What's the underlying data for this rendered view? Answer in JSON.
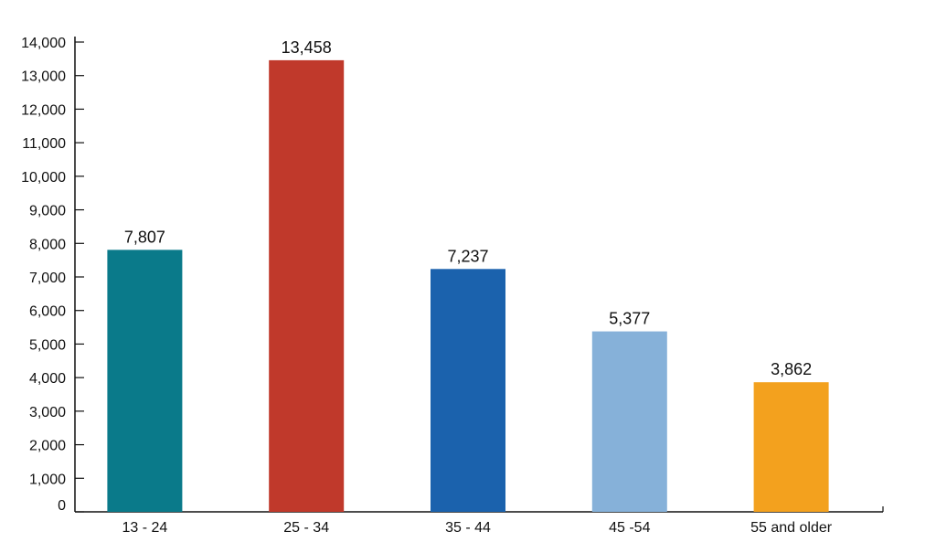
{
  "chart_data": {
    "type": "bar",
    "title": "",
    "xlabel": "",
    "ylabel": "",
    "categories": [
      "13 - 24",
      "25 - 34",
      "35 - 44",
      "45 -54",
      "55 and older"
    ],
    "values": [
      7807,
      13458,
      7237,
      5377,
      3862
    ],
    "value_labels": [
      "7,807",
      "13,458",
      "7,237",
      "5,377",
      "3,862"
    ],
    "colors": [
      "#0a7a8a",
      "#c0392b",
      "#1b62ad",
      "#86b1d9",
      "#f3a11e"
    ],
    "ylim": [
      0,
      14000
    ],
    "yticks": [
      0,
      1000,
      2000,
      3000,
      4000,
      5000,
      6000,
      7000,
      8000,
      9000,
      10000,
      11000,
      12000,
      13000,
      14000
    ],
    "ytick_labels": [
      "0",
      "1,000",
      "2,000",
      "3,000",
      "4,000",
      "5,000",
      "6,000",
      "7,000",
      "8,000",
      "9,000",
      "10,000",
      "11,000",
      "12,000",
      "13,000",
      "14,000"
    ],
    "grid": false,
    "legend": "none"
  }
}
